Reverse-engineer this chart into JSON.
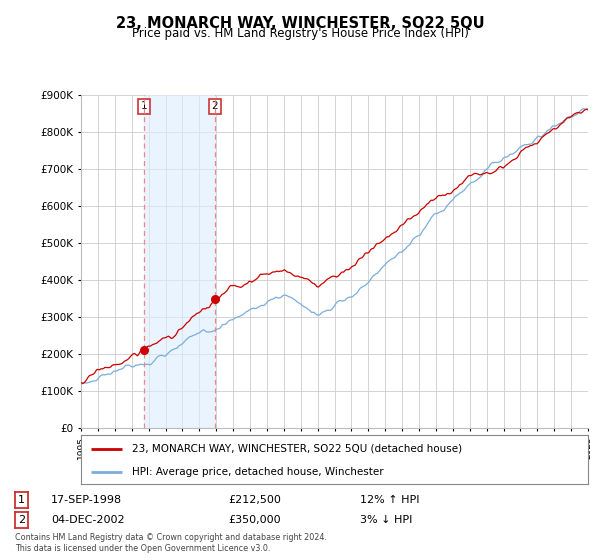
{
  "title": "23, MONARCH WAY, WINCHESTER, SO22 5QU",
  "subtitle": "Price paid vs. HM Land Registry's House Price Index (HPI)",
  "ylim": [
    0,
    900000
  ],
  "yticks": [
    0,
    100000,
    200000,
    300000,
    400000,
    500000,
    600000,
    700000,
    800000,
    900000
  ],
  "legend_line1": "23, MONARCH WAY, WINCHESTER, SO22 5QU (detached house)",
  "legend_line2": "HPI: Average price, detached house, Winchester",
  "marker1_date": "17-SEP-1998",
  "marker1_price": "£212,500",
  "marker1_hpi": "12% ↑ HPI",
  "marker1_year": 1998.71,
  "marker1_value": 212500,
  "marker2_date": "04-DEC-2002",
  "marker2_price": "£350,000",
  "marker2_hpi": "3% ↓ HPI",
  "marker2_year": 2002.92,
  "marker2_value": 350000,
  "copyright": "Contains HM Land Registry data © Crown copyright and database right 2024.\nThis data is licensed under the Open Government Licence v3.0.",
  "bg_color": "#ffffff",
  "plot_bg_color": "#ffffff",
  "grid_color": "#cccccc",
  "red_color": "#cc0000",
  "blue_color": "#7aaddc",
  "shade_color": "#ddeeff",
  "vline_color": "#ee8888"
}
